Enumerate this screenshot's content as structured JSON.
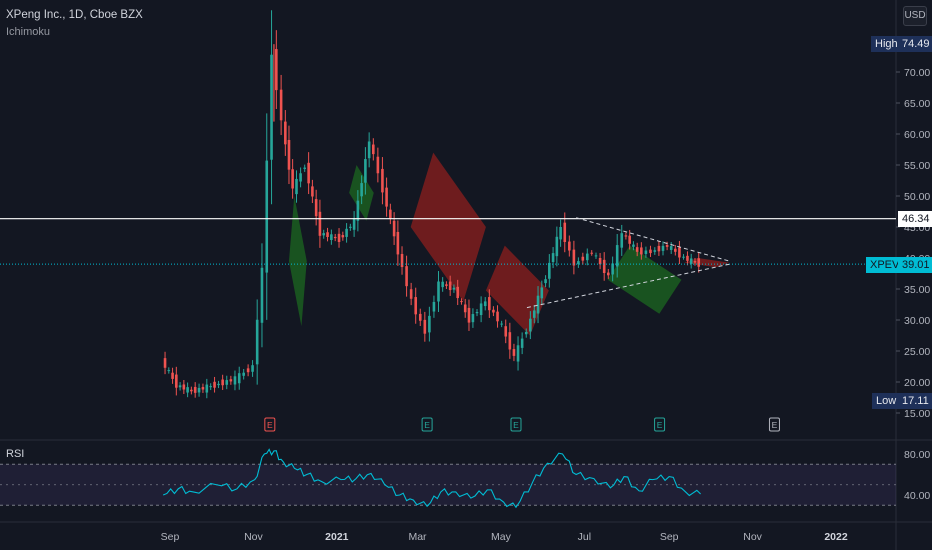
{
  "header": {
    "symbol_line": "XPeng Inc., 1D, Cboe BZX",
    "indicator_name": "Ichimoku",
    "currency_button": "USD",
    "rsi_title": "RSI"
  },
  "price_axis": {
    "ticks": [
      "70.00",
      "65.00",
      "60.00",
      "55.00",
      "50.00",
      "45.00",
      "40.00",
      "35.00",
      "30.00",
      "25.00",
      "20.00",
      "15.00"
    ],
    "values": [
      70,
      65,
      60,
      55,
      50,
      45,
      40,
      35,
      30,
      25,
      20,
      15
    ]
  },
  "rsi_axis": {
    "ticks": [
      "80.00",
      "40.00"
    ],
    "values": [
      80,
      40
    ]
  },
  "time_axis": {
    "labels": [
      "Sep",
      "Nov",
      "2021",
      "Mar",
      "May",
      "Jul",
      "Sep",
      "Nov",
      "2022"
    ],
    "bold": [
      false,
      false,
      true,
      false,
      false,
      false,
      false,
      false,
      true
    ]
  },
  "tags": {
    "high_label": "High",
    "high_value": "74.49",
    "level_value": "46.34",
    "last_name": "XPEV",
    "last_value": "39.01",
    "low_label": "Low",
    "low_value": "17.11"
  },
  "earnings_markers": [
    "E",
    "E",
    "E",
    "E",
    "E"
  ],
  "colors": {
    "bg": "#131722",
    "up": "#26a69a",
    "down": "#ef5350",
    "cyan": "#00bcd4",
    "kumo_bull": "#1b5e20",
    "kumo_bear": "#7f1d1d",
    "hline": "#ffffff"
  },
  "chart_data": [
    {
      "type": "candlestick",
      "title": "XPeng Inc., 1D, Cboe BZX",
      "indicator": "Ichimoku",
      "ylim": [
        15,
        75
      ],
      "x": [
        "2020-08-27",
        "2020-09-07",
        "2020-09-18",
        "2020-10-05",
        "2020-10-20",
        "2020-11-02",
        "2020-11-09",
        "2020-11-16",
        "2020-11-23",
        "2020-12-01",
        "2020-12-10",
        "2020-12-21",
        "2021-01-04",
        "2021-01-15",
        "2021-01-26",
        "2021-02-05",
        "2021-02-16",
        "2021-02-26",
        "2021-03-08",
        "2021-03-18",
        "2021-03-29",
        "2021-04-09",
        "2021-04-21",
        "2021-05-03",
        "2021-05-12",
        "2021-05-24",
        "2021-06-04",
        "2021-06-15",
        "2021-06-25",
        "2021-07-08",
        "2021-07-20",
        "2021-07-30",
        "2021-08-10",
        "2021-08-20",
        "2021-09-01",
        "2021-09-13",
        "2021-09-24"
      ],
      "close": [
        23.5,
        19.5,
        18.5,
        19.5,
        20.5,
        22.5,
        38,
        73,
        62,
        51,
        55,
        44,
        43,
        46,
        59,
        51,
        41,
        33,
        28,
        36,
        35,
        30,
        33,
        29,
        24,
        30,
        37,
        45,
        39,
        41,
        37,
        44,
        41,
        41,
        42,
        40,
        39.01
      ],
      "high_label": "High",
      "high": 74.49,
      "low_label": "Low",
      "low": 17.11,
      "horizontal_level": 46.34,
      "last": {
        "name": "XPEV",
        "value": 39.01
      },
      "kumo_segments": [
        {
          "from": "2020-11-27",
          "to": "2020-12-10",
          "type": "bullish"
        },
        {
          "from": "2021-01-10",
          "to": "2021-01-28",
          "type": "bullish"
        },
        {
          "from": "2021-02-24",
          "to": "2021-04-20",
          "type": "bearish"
        },
        {
          "from": "2021-04-20",
          "to": "2021-06-05",
          "type": "bearish"
        },
        {
          "from": "2021-07-18",
          "to": "2021-09-10",
          "type": "bullish"
        },
        {
          "from": "2021-09-12",
          "to": "2021-10-15",
          "type": "bearish"
        }
      ],
      "trendlines": [
        {
          "from": [
            "2021-06-25",
            46.5
          ],
          "to": [
            "2021-10-15",
            39.5
          ]
        },
        {
          "from": [
            "2021-05-20",
            32
          ],
          "to": [
            "2021-10-15",
            39
          ]
        }
      ]
    },
    {
      "type": "line",
      "title": "RSI",
      "ylim": [
        20,
        100
      ],
      "bands": [
        70,
        30
      ],
      "x": [
        "2020-08-27",
        "2020-09-07",
        "2020-09-18",
        "2020-10-05",
        "2020-10-20",
        "2020-11-02",
        "2020-11-09",
        "2020-11-16",
        "2020-11-23",
        "2020-12-01",
        "2020-12-10",
        "2020-12-21",
        "2021-01-04",
        "2021-01-15",
        "2021-01-26",
        "2021-02-05",
        "2021-02-16",
        "2021-02-26",
        "2021-03-08",
        "2021-03-18",
        "2021-03-29",
        "2021-04-09",
        "2021-04-21",
        "2021-05-03",
        "2021-05-12",
        "2021-05-24",
        "2021-06-04",
        "2021-06-15",
        "2021-06-25",
        "2021-07-08",
        "2021-07-20",
        "2021-07-30",
        "2021-08-10",
        "2021-08-20",
        "2021-09-01",
        "2021-09-13",
        "2021-09-24"
      ],
      "values": [
        40,
        46,
        43,
        50,
        46,
        55,
        80,
        83,
        72,
        66,
        60,
        53,
        55,
        56,
        61,
        50,
        40,
        35,
        29,
        43,
        43,
        37,
        45,
        33,
        28,
        52,
        71,
        80,
        60,
        56,
        47,
        58,
        44,
        55,
        58,
        43,
        41
      ]
    }
  ]
}
